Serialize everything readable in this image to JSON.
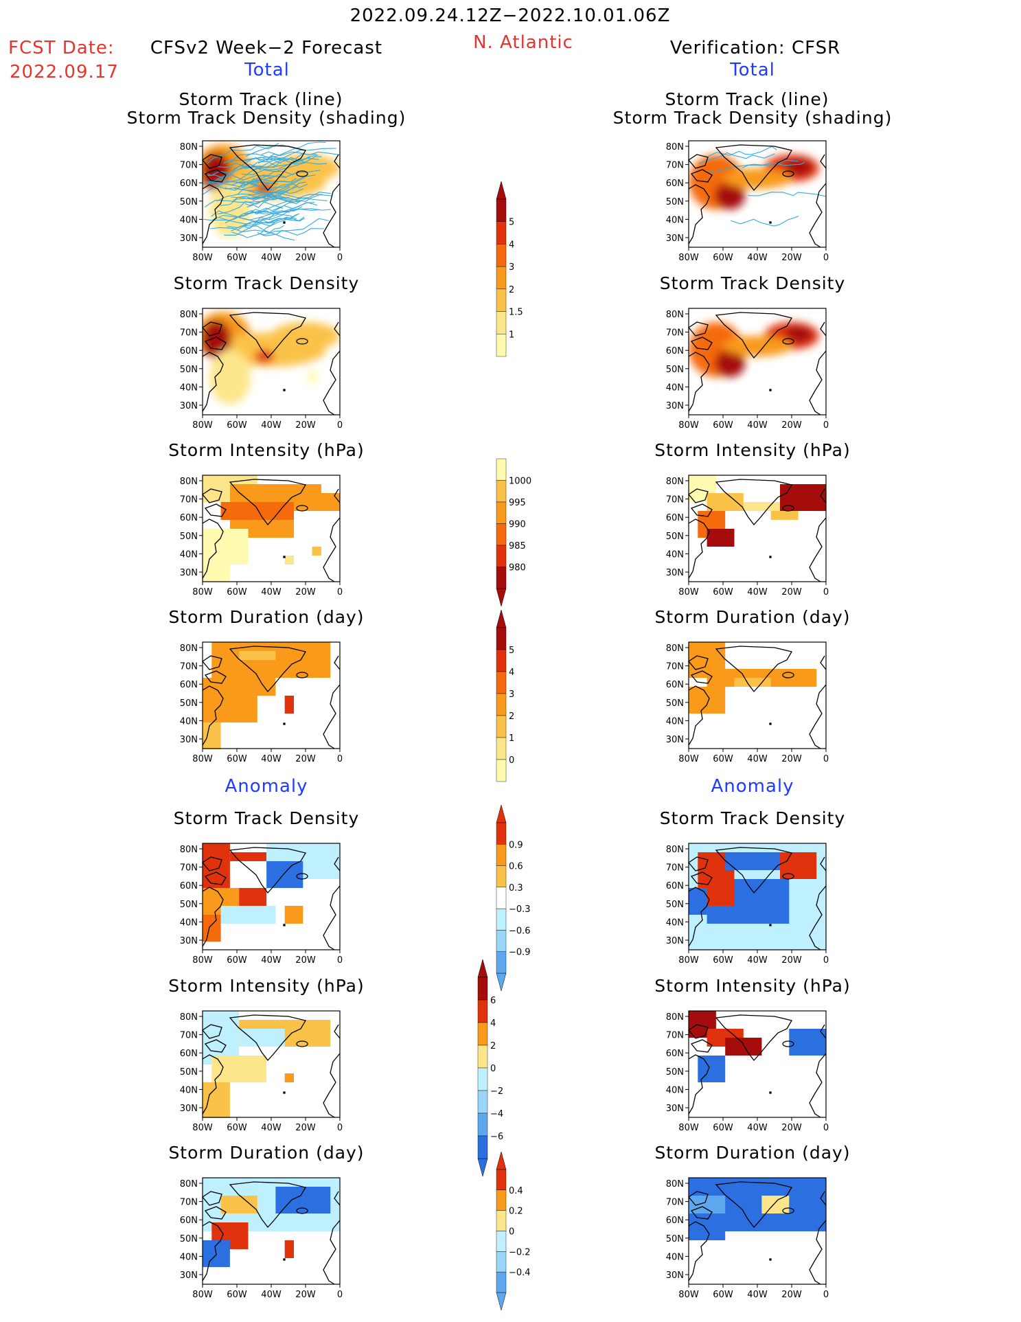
{
  "header": {
    "date_range": "2022.09.24.12Z−2022.10.01.06Z",
    "fcst_label": "FCST Date:",
    "fcst_date": "2022.09.17",
    "region": "N. Atlantic",
    "left_title": "CFSv2 Week−2 Forecast",
    "right_title": "Verification: CFSR",
    "left_total": "Total",
    "right_total": "Total",
    "left_anomaly": "Anomaly",
    "right_anomaly": "Anomaly"
  },
  "panel_titles": {
    "track_line": "Storm Track (line)",
    "track_shading": "Storm Track Density (shading)",
    "density": "Storm Track Density",
    "intensity": "Storm Intensity (hPa)",
    "duration": "Storm Duration (day)"
  },
  "axes": {
    "lat_labels": [
      "80N",
      "70N",
      "60N",
      "50N",
      "40N",
      "30N"
    ],
    "lon_labels": [
      "80W",
      "60W",
      "40W",
      "20W",
      "0"
    ]
  },
  "colorbars": {
    "total_density": [
      "5",
      "4",
      "3",
      "2",
      "1.5",
      "1"
    ],
    "total_intensity": [
      "1000",
      "995",
      "990",
      "985",
      "980"
    ],
    "total_duration": [
      "5",
      "4",
      "3",
      "2",
      "1",
      "0"
    ],
    "anom_density": [
      "0.9",
      "0.6",
      "0.3",
      "−0.3",
      "−0.6",
      "−0.9"
    ],
    "anom_intensity": [
      "6",
      "4",
      "2",
      "0",
      "−2",
      "−4",
      "−6"
    ],
    "anom_duration": [
      "0.4",
      "0.2",
      "0",
      "−0.2",
      "−0.4"
    ]
  },
  "colors": {
    "warm": [
      "#fffab0",
      "#fde68a",
      "#fbc24a",
      "#f99a1a",
      "#f46a0c",
      "#e0320c",
      "#a50d0d"
    ],
    "cool": [
      "#bff0ff",
      "#9ad6f7",
      "#5da7ef",
      "#2c6fe0",
      "#1a4fc8"
    ],
    "track_line": "#35aadf",
    "header_red": "#e8322b",
    "header_blue": "#1f3bff"
  }
}
